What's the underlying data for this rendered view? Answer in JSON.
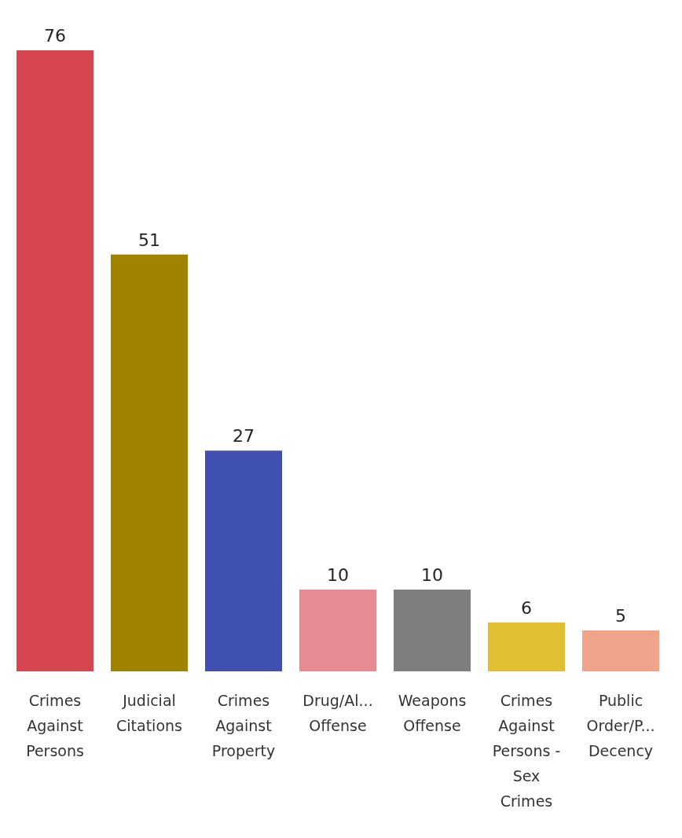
{
  "chart_data": {
    "type": "bar",
    "categories": [
      "Crimes Against Persons",
      "Judicial Citations",
      "Crimes Against Property",
      "Drug/Al... Offense",
      "Weapons Offense",
      "Crimes Against Persons - Sex Crimes",
      "Public Order/P... Decency"
    ],
    "values": [
      76,
      51,
      27,
      10,
      10,
      6,
      5
    ],
    "colors": [
      "#d64550",
      "#a08400",
      "#4050b0",
      "#e68a94",
      "#7f7f7f",
      "#e0c030",
      "#f0a58a"
    ],
    "data_labels": true
  }
}
